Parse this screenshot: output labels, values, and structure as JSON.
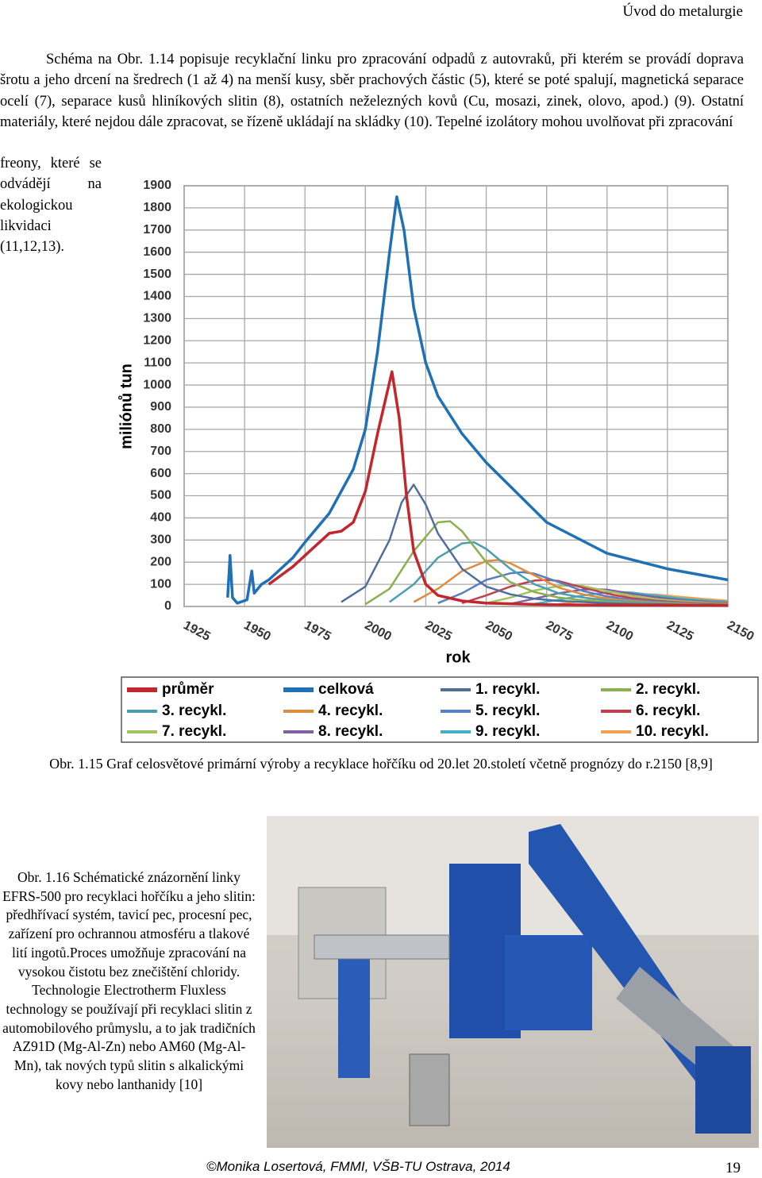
{
  "header": "Úvod do metalurgie",
  "paragraph": "Schéma na Obr. 1.14 popisuje recyklační linku pro zpracování odpadů z autovraků, při kterém se provádí doprava šrotu a jeho drcení na šredrech (1 až 4) na menší kusy, sběr prachových částic (5), které se poté spalují, magnetická separace ocelí (7), separace kusů hliníkových slitin (8), ostatních neželezných kovů (Cu, mosazi, zinek, olovo, apod.) (9). Ostatní materiály, které nejdou dále zpracovat, se řízeně ukládají na skládky (10). Tepelné izolátory mohou uvolňovat při zpracování",
  "paragraph_wrap": "freony, které se odvádějí na ekologickou likvidaci (11,12,13).",
  "chart_data": {
    "type": "line",
    "x_label": "rok",
    "y_label": "miliónů tun",
    "xlim": [
      1925,
      2150
    ],
    "xticks": [
      1925,
      1950,
      1975,
      2000,
      2025,
      2050,
      2075,
      2100,
      2125,
      2150
    ],
    "ylim": [
      0,
      1900
    ],
    "yticks": [
      0,
      100,
      200,
      300,
      400,
      500,
      600,
      700,
      800,
      900,
      1000,
      1100,
      1200,
      1300,
      1400,
      1500,
      1600,
      1700,
      1800,
      1900
    ],
    "grid": true,
    "series": [
      {
        "name": "průměr",
        "color": "#c1272d",
        "x": [
          1960,
          1970,
          1975,
          1985,
          1990,
          1995,
          2000,
          2005,
          2011,
          2014,
          2017,
          2020,
          2025,
          2030,
          2040,
          2050,
          2075,
          2100,
          2150
        ],
        "values": [
          100,
          180,
          230,
          330,
          340,
          380,
          520,
          780,
          1060,
          850,
          500,
          250,
          100,
          50,
          25,
          15,
          8,
          6,
          5
        ]
      },
      {
        "name": "celková",
        "color": "#1f70b5",
        "x": [
          1943,
          1944,
          1945,
          1947,
          1951,
          1953,
          1954,
          1957,
          1960,
          1970,
          1975,
          1985,
          1995,
          2000,
          2005,
          2010,
          2013,
          2016,
          2020,
          2025,
          2030,
          2040,
          2050,
          2075,
          2100,
          2125,
          2150
        ],
        "values": [
          40,
          230,
          40,
          15,
          30,
          160,
          60,
          100,
          120,
          220,
          290,
          420,
          620,
          800,
          1150,
          1600,
          1850,
          1700,
          1350,
          1100,
          950,
          780,
          650,
          380,
          240,
          170,
          120
        ]
      },
      {
        "name": "1. recykl.",
        "color": "#4f6e9e",
        "x": [
          1990,
          2000,
          2010,
          2015,
          2020,
          2025,
          2030,
          2040,
          2050,
          2060,
          2070,
          2080,
          2090,
          2100,
          2110,
          2120,
          2130,
          2140,
          2150
        ],
        "values": [
          20,
          90,
          300,
          470,
          550,
          460,
          330,
          170,
          90,
          55,
          35,
          25,
          20,
          15,
          12,
          10,
          8,
          7,
          6
        ]
      },
      {
        "name": "2. recykl.",
        "color": "#8cb04f",
        "x": [
          2000,
          2010,
          2020,
          2030,
          2035,
          2040,
          2050,
          2060,
          2070,
          2080,
          2090,
          2100,
          2110,
          2120,
          2130,
          2140,
          2150
        ],
        "values": [
          10,
          80,
          250,
          380,
          385,
          340,
          200,
          110,
          65,
          40,
          28,
          20,
          15,
          12,
          10,
          8,
          7
        ]
      },
      {
        "name": "3. recykl.",
        "color": "#4a9fb0",
        "x": [
          2010,
          2020,
          2030,
          2040,
          2045,
          2050,
          2060,
          2070,
          2080,
          2090,
          2100,
          2110,
          2120,
          2130,
          2140,
          2150
        ],
        "values": [
          20,
          100,
          220,
          285,
          290,
          260,
          170,
          100,
          60,
          40,
          28,
          20,
          15,
          12,
          10,
          8
        ]
      },
      {
        "name": "4. recykl.",
        "color": "#e08c3c",
        "x": [
          2020,
          2030,
          2040,
          2050,
          2055,
          2060,
          2070,
          2080,
          2090,
          2100,
          2110,
          2120,
          2130,
          2140,
          2150
        ],
        "values": [
          20,
          80,
          160,
          205,
          210,
          195,
          140,
          85,
          55,
          35,
          25,
          18,
          14,
          11,
          9
        ]
      },
      {
        "name": "5. recykl.",
        "color": "#5a7fc0",
        "x": [
          2030,
          2040,
          2050,
          2060,
          2065,
          2070,
          2080,
          2090,
          2100,
          2110,
          2120,
          2130,
          2140,
          2150
        ],
        "values": [
          15,
          60,
          120,
          150,
          155,
          148,
          110,
          70,
          45,
          30,
          22,
          16,
          12,
          10
        ]
      },
      {
        "name": "6. recykl.",
        "color": "#c0404f",
        "x": [
          2040,
          2050,
          2060,
          2070,
          2075,
          2080,
          2090,
          2100,
          2110,
          2120,
          2130,
          2140,
          2150
        ],
        "values": [
          15,
          50,
          90,
          117,
          120,
          115,
          85,
          58,
          38,
          26,
          19,
          14,
          11
        ]
      },
      {
        "name": "7. recykl.",
        "color": "#a2c45f",
        "x": [
          2050,
          2060,
          2070,
          2080,
          2085,
          2090,
          2100,
          2110,
          2120,
          2130,
          2140,
          2150
        ],
        "values": [
          15,
          40,
          72,
          92,
          95,
          92,
          70,
          48,
          33,
          24,
          18,
          14
        ]
      },
      {
        "name": "8. recykl.",
        "color": "#8060a0",
        "x": [
          2060,
          2070,
          2080,
          2090,
          2095,
          2100,
          2110,
          2120,
          2130,
          2140,
          2150
        ],
        "values": [
          12,
          35,
          60,
          76,
          78,
          76,
          58,
          42,
          30,
          22,
          17
        ]
      },
      {
        "name": "9. recykl.",
        "color": "#3fb2c4",
        "x": [
          2070,
          2080,
          2090,
          2100,
          2105,
          2110,
          2120,
          2130,
          2140,
          2150
        ],
        "values": [
          12,
          30,
          50,
          63,
          65,
          63,
          50,
          37,
          28,
          21
        ]
      },
      {
        "name": "10. recykl.",
        "color": "#f2a24e",
        "x": [
          2080,
          2090,
          2100,
          2110,
          2115,
          2120,
          2130,
          2140,
          2150
        ],
        "values": [
          10,
          25,
          42,
          53,
          55,
          54,
          44,
          34,
          26
        ]
      }
    ]
  },
  "figure_caption": "Obr. 1.15 Graf celosvětové primární výroby a recyklace hořčíku od 20.let 20.století včetně prognózy do r.2150 [8,9]",
  "photo_caption": "Obr. 1.16 Schématické znázornění linky EFRS-500 pro recyklaci hořčíku a jeho slitin: předhřívací systém, tavicí pec, procesní pec, zařízení pro ochrannou atmosféru a tlakové lití ingotů.Proces umožňuje zpracování na vysokou čistotu bez znečištění chloridy. Technologie Electrotherm Fluxless technology se používají při recyklaci slitin z automobilového průmyslu, a to jak tradičních AZ91D (Mg-Al-Zn) nebo AM60 (Mg-Al-Mn), tak nových typů slitin s alkalickými kovy nebo lanthanidy  [10]",
  "footer": {
    "author": "©Monika Losertová, FMMI, VŠB-TU Ostrava, 2014",
    "page": "19"
  }
}
